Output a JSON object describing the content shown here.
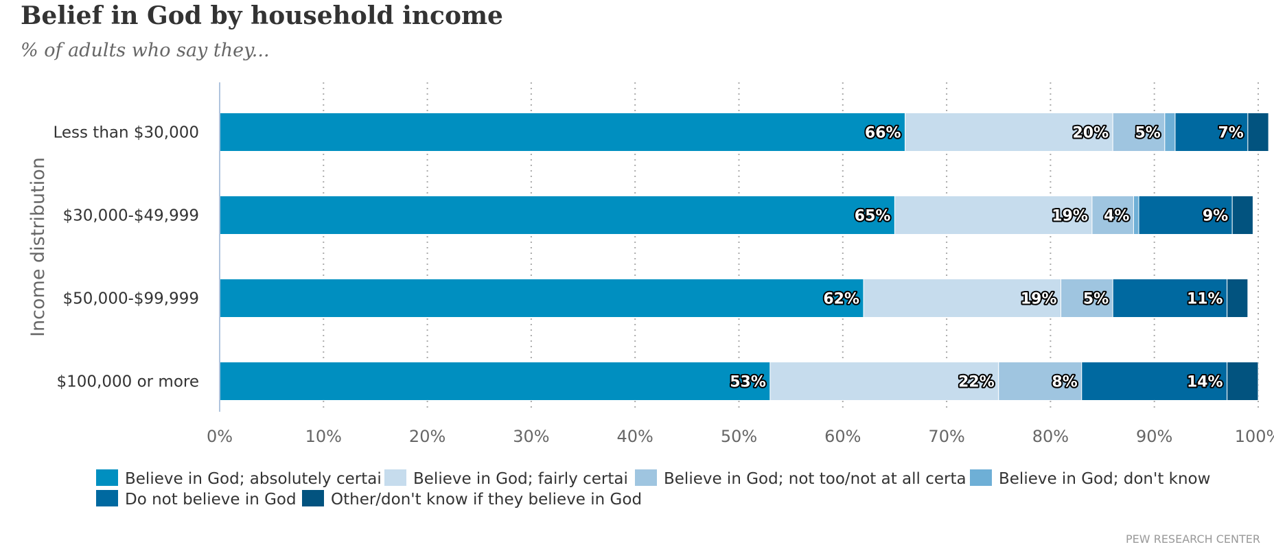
{
  "chart_data": {
    "type": "bar",
    "orientation": "horizontal",
    "stacked": true,
    "title": "Belief in God by household income",
    "subtitle": "% of adults who say they...",
    "ylabel": "Income distribution",
    "xlabel": "",
    "xlim": [
      0,
      100
    ],
    "x_ticks": [
      "0%",
      "10%",
      "20%",
      "30%",
      "40%",
      "50%",
      "60%",
      "70%",
      "80%",
      "90%",
      "100%"
    ],
    "grid": "vertical dotted",
    "legend_position": "bottom",
    "categories": [
      "Less than $30,000",
      "$30,000-$49,999",
      "$50,000-$99,999",
      "$100,000 or more"
    ],
    "series": [
      {
        "name": "Believe in God; absolutely certain",
        "legend_text": "Believe in God; absolutely certai",
        "color": "#008fc0",
        "values": [
          66,
          65,
          62,
          53
        ],
        "labels": [
          "66%",
          "65%",
          "62%",
          "53%"
        ]
      },
      {
        "name": "Believe in God; fairly certain",
        "legend_text": "Believe in God; fairly certai",
        "color": "#c6dced",
        "values": [
          20,
          19,
          19,
          22
        ],
        "labels": [
          "20%",
          "19%",
          "19%",
          "22%"
        ]
      },
      {
        "name": "Believe in God; not too/not at all certain",
        "legend_text": "Believe in God; not too/not at all certa",
        "color": "#9fc5e0",
        "values": [
          5,
          4,
          5,
          8
        ],
        "labels": [
          "5%",
          "4%",
          "5%",
          "8%"
        ]
      },
      {
        "name": "Believe in God; don't know",
        "legend_text": "Believe in God; don't know",
        "color": "#6eafd6",
        "values": [
          1,
          0.5,
          0,
          0
        ],
        "labels": [
          "",
          "",
          "",
          ""
        ]
      },
      {
        "name": "Do not believe in God",
        "legend_text": "Do not believe in God",
        "color": "#0069a0",
        "values": [
          7,
          9,
          11,
          14
        ],
        "labels": [
          "7%",
          "9%",
          "11%",
          "14%"
        ]
      },
      {
        "name": "Other/don't know if they believe in God",
        "legend_text": "Other/don't know if they believe in God",
        "color": "#02537f",
        "values": [
          2,
          2,
          2,
          3
        ],
        "labels": [
          "",
          "",
          "",
          ""
        ]
      }
    ],
    "source": "PEW RESEARCH CENTER"
  }
}
